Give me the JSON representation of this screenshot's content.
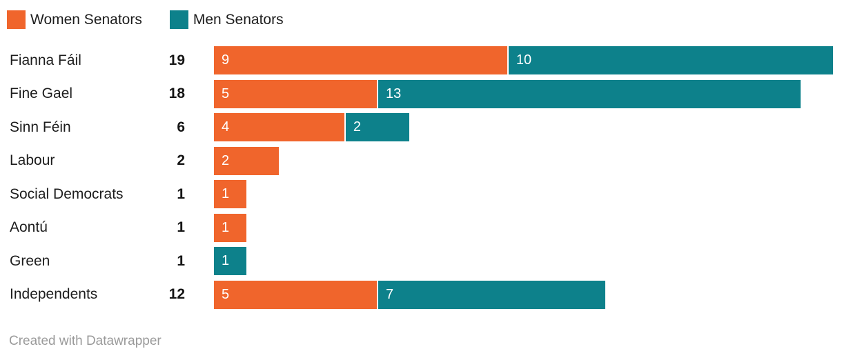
{
  "legend": {
    "items": [
      {
        "label": "Women Senators",
        "color": "#f0652c"
      },
      {
        "label": "Men Senators",
        "color": "#0d818b"
      }
    ]
  },
  "chart_data": {
    "type": "bar",
    "stacked": true,
    "orientation": "horizontal",
    "categories": [
      "Fianna Fáil",
      "Fine Gael",
      "Sinn Féin",
      "Labour",
      "Social Democrats",
      "Aontú",
      "Green",
      "Independents"
    ],
    "totals": [
      19,
      18,
      6,
      2,
      1,
      1,
      1,
      12
    ],
    "series": [
      {
        "name": "Women Senators",
        "color": "#f0652c",
        "values": [
          9,
          5,
          4,
          2,
          1,
          1,
          0,
          5
        ]
      },
      {
        "name": "Men Senators",
        "color": "#0d818b",
        "values": [
          10,
          13,
          2,
          0,
          0,
          0,
          1,
          7
        ]
      }
    ],
    "xlim": [
      0,
      19
    ],
    "value_labels": "inside-start",
    "grid": false,
    "legend_position": "top-left",
    "title": "",
    "xlabel": "",
    "ylabel": ""
  },
  "footer": {
    "credit": "Created with Datawrapper"
  }
}
